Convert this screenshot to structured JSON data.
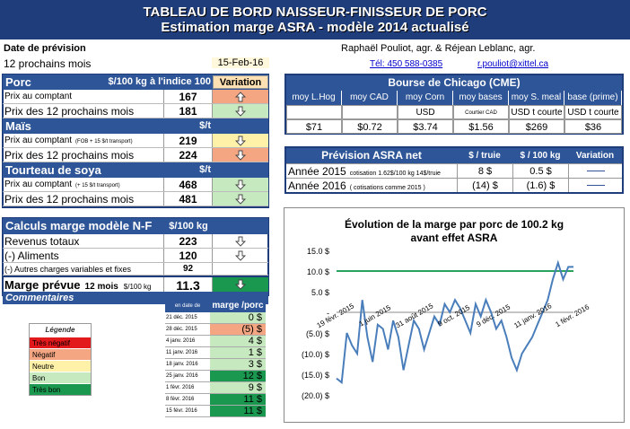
{
  "title": {
    "line1": "TABLEAU DE BORD NAISSEUR-FINISSEUR DE PORC",
    "line2": "Estimation marge ASRA - modèle 2014 actualisé"
  },
  "header": {
    "date_label": "Date de prévision",
    "period": "12 prochains mois",
    "date": "15-Feb-16",
    "authors": "Raphaël Pouliot, agr.   &   Réjean Leblanc, agr.",
    "tel": "Tél:   450 588-0385",
    "email": "r.pouliot@xittel.ca"
  },
  "porc": {
    "title": "Porc",
    "unit": "$/100 kg à l'indice 100",
    "variation": "Variation",
    "rows": [
      {
        "label": "Prix au comptant",
        "value": "167",
        "dir": "up",
        "color": "#f4a582"
      },
      {
        "label": "Prix des 12 prochains mois",
        "value": "181",
        "dir": "down",
        "color": "#c7e9c0"
      }
    ]
  },
  "mais": {
    "title": "Maïs",
    "unit": "$/t",
    "rows": [
      {
        "label": "Prix au comptant",
        "note": "(FOB + 15 $/t transport)",
        "value": "219",
        "dir": "down",
        "color": "#fff2a8"
      },
      {
        "label": "Prix des 12 prochains mois",
        "value": "224",
        "dir": "down",
        "color": "#f4a582"
      }
    ]
  },
  "soya": {
    "title": "Tourteau de soya",
    "unit": "$/t",
    "rows": [
      {
        "label": "Prix au comptant",
        "note": "(+ 15 $/t transport)",
        "value": "468",
        "dir": "down",
        "color": "#c7e9c0"
      },
      {
        "label": "Prix des 12 prochains mois",
        "value": "481",
        "dir": "down",
        "color": "#c7e9c0"
      }
    ]
  },
  "bourse": {
    "title": "Bourse de Chicago (CME)",
    "cols": [
      "moy L.Hog",
      "moy CAD",
      "moy Corn",
      "moy bases",
      "moy S. meal",
      "base (prime)"
    ],
    "units": [
      "",
      "",
      "USD",
      "Courtier CAD",
      "USD t courte",
      "USD t courte"
    ],
    "values": [
      "$71",
      "$0.72",
      "$3.74",
      "$1.56",
      "$269",
      "$36"
    ]
  },
  "asra": {
    "title": "Prévision ASRA net",
    "col1": "$ / truie",
    "col2": "$ / 100 kg",
    "col3": "Variation",
    "rows": [
      {
        "label": "Année 2015",
        "note": "cotisation 1.62$/100 kg 14$/truie",
        "v1": "8 $",
        "v2": "0.5 $"
      },
      {
        "label": "Année 2016",
        "note": "( cotisations comme 2015 )",
        "v1": "(14) $",
        "v2": "(1.6) $"
      }
    ]
  },
  "marge": {
    "title": "Calculs marge  modèle N-F",
    "unit": "$/100 kg",
    "rows": [
      {
        "label": "Revenus totaux",
        "value": "223",
        "dir": "down"
      },
      {
        "label": "(-) Aliments",
        "value": "120",
        "dir": "down"
      },
      {
        "label": "(-) Autres charges variables et fixes",
        "value": "92",
        "dir": ""
      }
    ],
    "prevue_label": "Marge prévue",
    "prevue_sub": "12 mois",
    "prevue_unit": "$/100 kg",
    "prevue_value": "11.3",
    "commentaires": "Commentaires"
  },
  "history": {
    "col1": "en date de",
    "col2": "marge /porc",
    "rows": [
      {
        "date": "21 déc. 2015",
        "value": "0 $",
        "color": "#c7e9c0"
      },
      {
        "date": "28 déc. 2015",
        "value": "(5) $",
        "color": "#f4a582"
      },
      {
        "date": "4 janv. 2016",
        "value": "4 $",
        "color": "#c7e9c0"
      },
      {
        "date": "11 janv. 2016",
        "value": "1 $",
        "color": "#c7e9c0"
      },
      {
        "date": "18 janv. 2016",
        "value": "3 $",
        "color": "#c7e9c0"
      },
      {
        "date": "25 janv. 2016",
        "value": "12 $",
        "color": "#1a9850"
      },
      {
        "date": "1 févr. 2016",
        "value": "9 $",
        "color": "#c7e9c0"
      },
      {
        "date": "8 févr. 2016",
        "value": "11 $",
        "color": "#1a9850"
      },
      {
        "date": "15 févr. 2016",
        "value": "11 $",
        "color": "#1a9850"
      }
    ]
  },
  "legend": {
    "title": "Légende",
    "items": [
      {
        "label": "Très négatif",
        "color": "#e31a1c"
      },
      {
        "label": "Négatif",
        "color": "#f4a582"
      },
      {
        "label": "Neutre",
        "color": "#fff2a8"
      },
      {
        "label": "Bon",
        "color": "#c7e9c0"
      },
      {
        "label": "Très bon",
        "color": "#1a9850"
      }
    ]
  },
  "chart_data": {
    "type": "line",
    "title": "Évolution de la marge par porc de 100.2 kg avant effet ASRA",
    "title_line1": "Évolution de la marge par porc de 100.2 kg",
    "title_line2": "avant effet ASRA",
    "ylim": [
      -20,
      15
    ],
    "yticks": [
      "(20.0) $",
      "(15.0) $",
      "(10.0) $",
      "(5.0) $",
      "-",
      "5.0 $",
      "10.0 $",
      "15.0 $"
    ],
    "ytick_values": [
      -20,
      -15,
      -10,
      -5,
      0,
      5,
      10,
      15
    ],
    "xticks": [
      "19 févr. 2015",
      "1 juin 2015",
      "31 août 2015",
      "9 oct. 2015",
      "9 déc. 2015",
      "11 janv. 2016",
      "1 févr. 2016"
    ],
    "reference_line": 10,
    "series": [
      {
        "values": [
          -16,
          -17,
          -5,
          -8,
          -10,
          3,
          -6,
          -12,
          -3,
          -4,
          -9,
          -2,
          -6,
          -14,
          -8,
          -2,
          -4,
          -9,
          -5,
          -1,
          -3,
          2,
          0,
          3,
          1,
          -2,
          -5,
          2,
          -1,
          3,
          0,
          -4,
          -2,
          -6,
          -11,
          -14,
          -10,
          -8,
          -6,
          -3,
          0,
          3,
          8,
          12,
          8,
          11,
          11
        ]
      }
    ]
  }
}
